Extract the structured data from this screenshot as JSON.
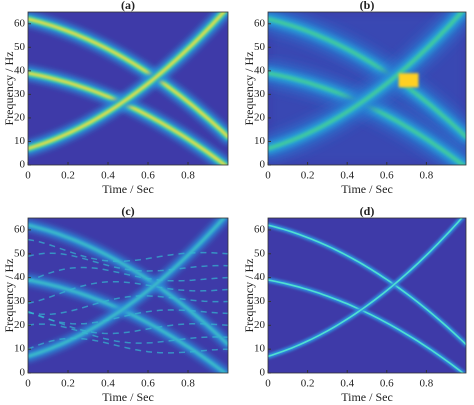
{
  "chart_data": [
    {
      "type": "heatmap",
      "title": "(a)",
      "xlabel": "Time / Sec",
      "ylabel": "Frequency / Hz",
      "xlim": [
        0,
        1
      ],
      "ylim": [
        0,
        65
      ],
      "xticks": [
        0,
        0.2,
        0.4,
        0.6,
        0.8
      ],
      "yticks": [
        0,
        10,
        20,
        30,
        40,
        50,
        60
      ]
    },
    {
      "type": "heatmap",
      "title": "(b)",
      "xlabel": "Time / Sec",
      "ylabel": "Frequency / Hz",
      "xlim": [
        0,
        1
      ],
      "ylim": [
        0,
        65
      ],
      "xticks": [
        0,
        0.2,
        0.4,
        0.6,
        0.8
      ],
      "yticks": [
        0,
        10,
        20,
        30,
        40,
        50,
        60
      ]
    },
    {
      "type": "heatmap",
      "title": "(c)",
      "xlabel": "Time / Sec",
      "ylabel": "Frequency / Hz",
      "xlim": [
        0,
        1
      ],
      "ylim": [
        0,
        65
      ],
      "xticks": [
        0,
        0.2,
        0.4,
        0.6,
        0.8
      ],
      "yticks": [
        0,
        10,
        20,
        30,
        40,
        50,
        60
      ]
    },
    {
      "type": "heatmap",
      "title": "(d)",
      "xlabel": "Time / Sec",
      "ylabel": "Frequency / Hz",
      "xlim": [
        0,
        1
      ],
      "ylim": [
        0,
        65
      ],
      "xticks": [
        0,
        0.2,
        0.4,
        0.6,
        0.8
      ],
      "yticks": [
        0,
        10,
        20,
        30,
        40,
        50,
        60
      ]
    }
  ]
}
